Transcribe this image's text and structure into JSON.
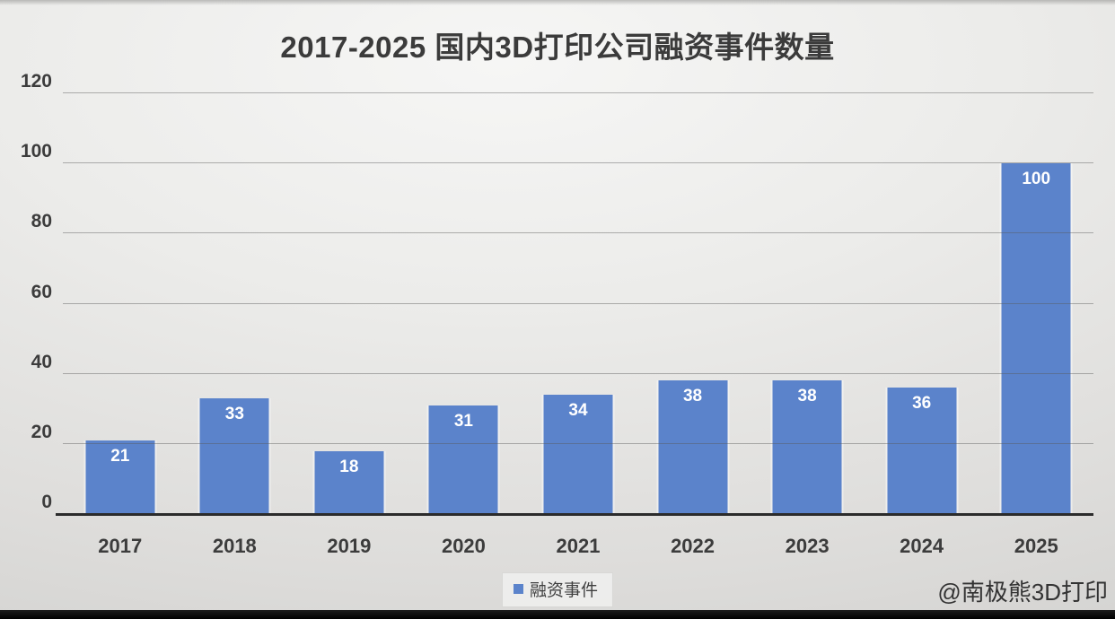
{
  "chart": {
    "title": "2017-2025 国内3D打印公司融资事件数量",
    "legend_label": "融资事件"
  },
  "watermark": "@南极熊3D打印",
  "chart_data": {
    "type": "bar",
    "title": "2017-2025 国内3D打印公司融资事件数量",
    "categories": [
      "2017",
      "2018",
      "2019",
      "2020",
      "2021",
      "2022",
      "2023",
      "2024",
      "2025"
    ],
    "series": [
      {
        "name": "融资事件",
        "values": [
          21,
          33,
          18,
          31,
          34,
          38,
          38,
          36,
          100
        ]
      }
    ],
    "value_labels_shown": true,
    "xlabel": "",
    "ylabel": "",
    "ylim": [
      0,
      120
    ],
    "y_ticks": [
      0,
      20,
      40,
      60,
      80,
      100,
      120
    ],
    "grid": true,
    "legend_position": "bottom",
    "colors": {
      "bar": "#5b83cb",
      "value_label": "#ffffff",
      "axis_text": "#3c3c3c",
      "title_text": "#3b3b3b",
      "gridline": "#6f6f6f",
      "axis_line": "#2b2b2b"
    }
  }
}
